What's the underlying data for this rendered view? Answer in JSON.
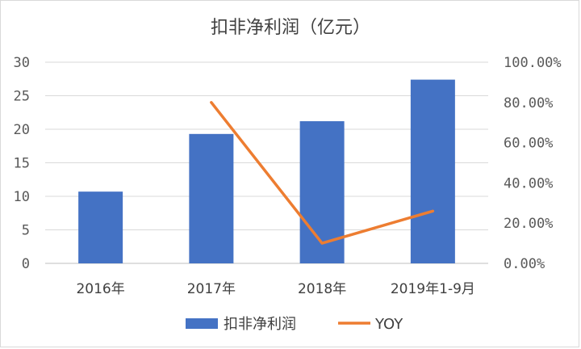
{
  "chart_data": {
    "type": "bar",
    "title": "扣非净利润（亿元）",
    "categories": [
      "2016年",
      "2017年",
      "2018年",
      "2019年1-9月"
    ],
    "series": [
      {
        "name": "扣非净利润",
        "type": "bar",
        "axis": "left",
        "color": "#4472C4",
        "values": [
          10.7,
          19.3,
          21.2,
          27.4
        ]
      },
      {
        "name": "YOY",
        "type": "line",
        "axis": "right",
        "color": "#ED7D31",
        "values": [
          null,
          0.8,
          0.1,
          0.26
        ]
      }
    ],
    "y_left": {
      "min": 0,
      "max": 30,
      "ticks": [
        "0",
        "5",
        "10",
        "15",
        "20",
        "25",
        "30"
      ]
    },
    "y_right": {
      "min": 0,
      "max": 1,
      "ticks": [
        "0.00%",
        "20.00%",
        "40.00%",
        "60.00%",
        "80.00%",
        "100.00%"
      ]
    },
    "grid": true,
    "legend_position": "bottom"
  }
}
